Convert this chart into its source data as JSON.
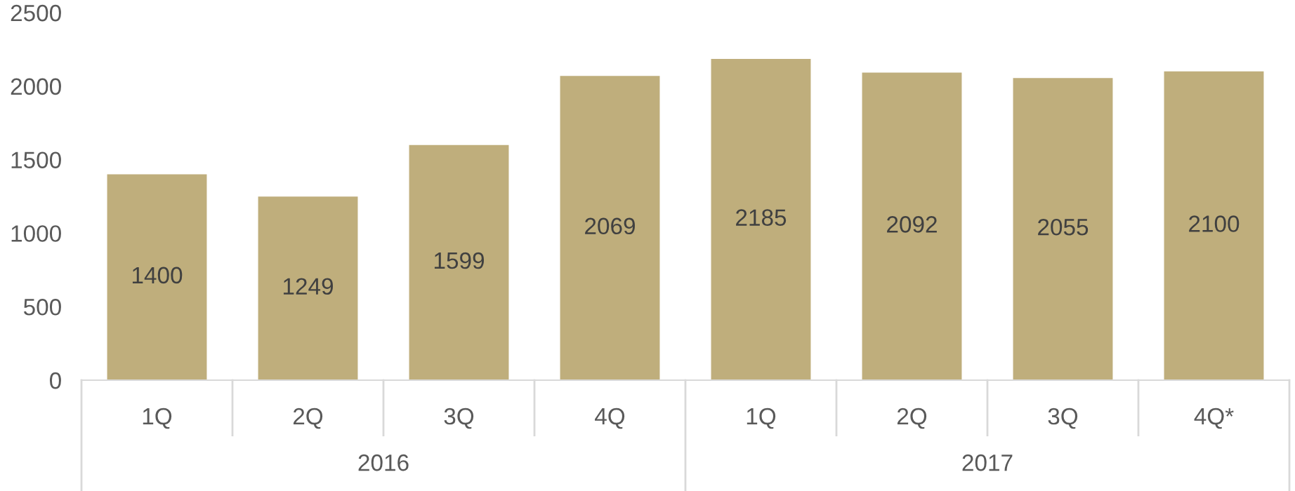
{
  "chart_data": {
    "type": "bar",
    "categories": [
      "1Q",
      "2Q",
      "3Q",
      "4Q",
      "1Q",
      "2Q",
      "3Q",
      "4Q*"
    ],
    "values": [
      1400,
      1249,
      1599,
      2069,
      2185,
      2092,
      2055,
      2100
    ],
    "color": "#bfae7c",
    "ylim": [
      0,
      2500
    ],
    "yticks": [
      0,
      500,
      1000,
      1500,
      2000,
      2500
    ],
    "data_labels": true,
    "grid": false,
    "legend": false,
    "annotations": [
      "2016",
      "2017"
    ]
  }
}
